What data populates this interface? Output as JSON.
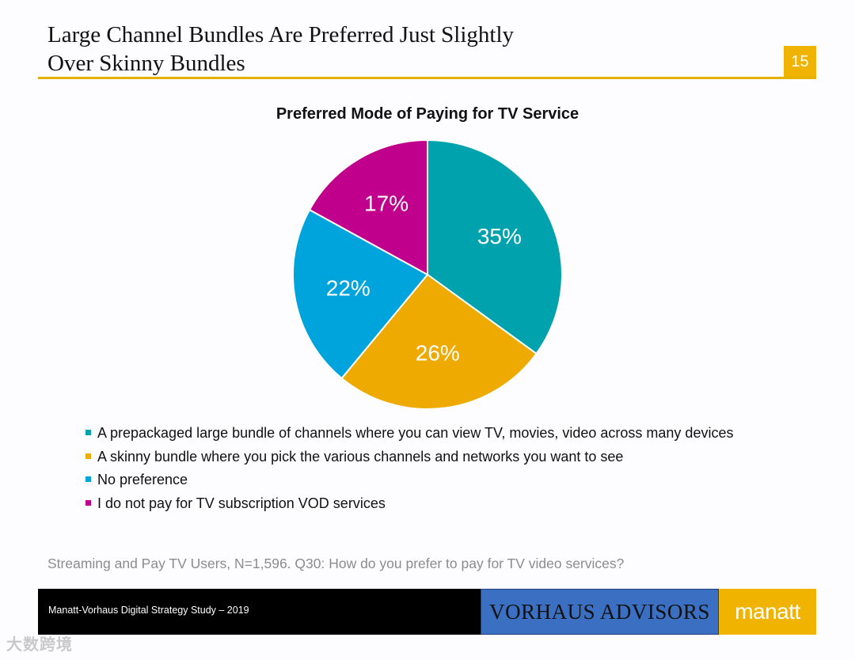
{
  "slide": {
    "title_line1": "Large Channel Bundles Are Preferred Just Slightly",
    "title_line2": "Over Skinny Bundles",
    "page_number": "15",
    "footnote": "Streaming and Pay TV Users, N=1,596. Q30: How do you prefer to pay for TV video services?"
  },
  "footer": {
    "study": "Manatt-Vorhaus Digital Strategy Study – 2019",
    "brand_vorhaus": "VORHAUS ADVISORS",
    "brand_manatt": "manatt"
  },
  "watermark": "大数跨境",
  "colors": {
    "accent_gold": "#f0b400",
    "vorhaus_blue": "#3b6fc2"
  },
  "chart_data": {
    "type": "pie",
    "title": "Preferred Mode of Paying for TV Service",
    "unit": "%",
    "start": "12 o'clock, clockwise",
    "legend_position": "bottom",
    "slices": [
      {
        "label": "A prepackaged large bundle of channels where you can view TV, movies, video across many devices",
        "value": 35,
        "display": "35%",
        "color": "#00a3ad"
      },
      {
        "label": "A skinny bundle where you pick the various channels and networks you want to see",
        "value": 26,
        "display": "26%",
        "color": "#efaa00"
      },
      {
        "label": "No preference",
        "value": 22,
        "display": "22%",
        "color": "#00a4dd"
      },
      {
        "label": "I do not pay for TV subscription VOD services",
        "value": 17,
        "display": "17%",
        "color": "#c0008c"
      }
    ]
  }
}
